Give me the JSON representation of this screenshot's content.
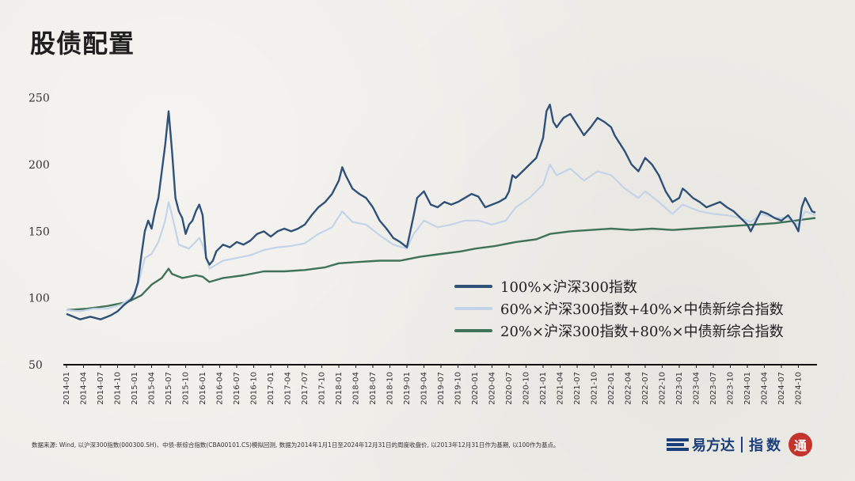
{
  "page": {
    "title": "股债配置"
  },
  "chart_data": {
    "type": "line",
    "title": "股债配置",
    "xlabel": "",
    "ylabel": "",
    "ylim": [
      50,
      270
    ],
    "yticks": [
      50,
      100,
      150,
      200,
      250
    ],
    "xticks": [
      "2014-01",
      "2014-04",
      "2014-07",
      "2014-10",
      "2015-01",
      "2015-04",
      "2015-07",
      "2015-10",
      "2016-01",
      "2016-04",
      "2016-07",
      "2016-10",
      "2017-01",
      "2017-04",
      "2017-07",
      "2017-10",
      "2018-01",
      "2018-04",
      "2018-07",
      "2018-10",
      "2019-01",
      "2019-04",
      "2019-07",
      "2019-10",
      "2020-01",
      "2020-04",
      "2020-07",
      "2020-10",
      "2021-01",
      "2021-04",
      "2021-07",
      "2021-10",
      "2022-01",
      "2022-04",
      "2022-07",
      "2022-10",
      "2023-01",
      "2023-04",
      "2023-07",
      "2023-10",
      "2024-01",
      "2024-04",
      "2024-07",
      "2024-10"
    ],
    "series": [
      {
        "name": "100%×沪深300指数",
        "color": "#2f5178",
        "points": [
          [
            2014.0,
            88
          ],
          [
            2014.1,
            86
          ],
          [
            2014.2,
            84
          ],
          [
            2014.35,
            86
          ],
          [
            2014.5,
            84
          ],
          [
            2014.65,
            87
          ],
          [
            2014.75,
            90
          ],
          [
            2014.85,
            95
          ],
          [
            2014.95,
            99
          ],
          [
            2015.0,
            103
          ],
          [
            2015.05,
            112
          ],
          [
            2015.1,
            132
          ],
          [
            2015.15,
            150
          ],
          [
            2015.2,
            158
          ],
          [
            2015.25,
            152
          ],
          [
            2015.3,
            165
          ],
          [
            2015.35,
            175
          ],
          [
            2015.4,
            195
          ],
          [
            2015.45,
            215
          ],
          [
            2015.5,
            240
          ],
          [
            2015.55,
            210
          ],
          [
            2015.6,
            175
          ],
          [
            2015.65,
            165
          ],
          [
            2015.7,
            160
          ],
          [
            2015.75,
            148
          ],
          [
            2015.8,
            155
          ],
          [
            2015.85,
            158
          ],
          [
            2015.9,
            165
          ],
          [
            2015.95,
            170
          ],
          [
            2016.0,
            162
          ],
          [
            2016.05,
            130
          ],
          [
            2016.1,
            125
          ],
          [
            2016.15,
            128
          ],
          [
            2016.2,
            135
          ],
          [
            2016.3,
            140
          ],
          [
            2016.4,
            138
          ],
          [
            2016.5,
            142
          ],
          [
            2016.6,
            140
          ],
          [
            2016.7,
            143
          ],
          [
            2016.8,
            148
          ],
          [
            2016.9,
            150
          ],
          [
            2017.0,
            146
          ],
          [
            2017.1,
            150
          ],
          [
            2017.2,
            152
          ],
          [
            2017.3,
            150
          ],
          [
            2017.4,
            152
          ],
          [
            2017.5,
            155
          ],
          [
            2017.6,
            162
          ],
          [
            2017.7,
            168
          ],
          [
            2017.8,
            172
          ],
          [
            2017.9,
            178
          ],
          [
            2018.0,
            188
          ],
          [
            2018.05,
            198
          ],
          [
            2018.1,
            192
          ],
          [
            2018.2,
            182
          ],
          [
            2018.3,
            178
          ],
          [
            2018.4,
            175
          ],
          [
            2018.5,
            168
          ],
          [
            2018.6,
            158
          ],
          [
            2018.7,
            152
          ],
          [
            2018.8,
            145
          ],
          [
            2018.9,
            142
          ],
          [
            2019.0,
            138
          ],
          [
            2019.05,
            150
          ],
          [
            2019.1,
            162
          ],
          [
            2019.15,
            175
          ],
          [
            2019.25,
            180
          ],
          [
            2019.35,
            170
          ],
          [
            2019.45,
            168
          ],
          [
            2019.55,
            172
          ],
          [
            2019.65,
            170
          ],
          [
            2019.75,
            172
          ],
          [
            2019.85,
            175
          ],
          [
            2019.95,
            178
          ],
          [
            2020.05,
            176
          ],
          [
            2020.15,
            168
          ],
          [
            2020.25,
            170
          ],
          [
            2020.35,
            172
          ],
          [
            2020.45,
            175
          ],
          [
            2020.5,
            180
          ],
          [
            2020.55,
            192
          ],
          [
            2020.6,
            190
          ],
          [
            2020.7,
            195
          ],
          [
            2020.8,
            200
          ],
          [
            2020.9,
            205
          ],
          [
            2021.0,
            220
          ],
          [
            2021.05,
            240
          ],
          [
            2021.1,
            245
          ],
          [
            2021.15,
            232
          ],
          [
            2021.2,
            228
          ],
          [
            2021.3,
            235
          ],
          [
            2021.4,
            238
          ],
          [
            2021.5,
            230
          ],
          [
            2021.6,
            222
          ],
          [
            2021.7,
            228
          ],
          [
            2021.8,
            235
          ],
          [
            2021.9,
            232
          ],
          [
            2022.0,
            228
          ],
          [
            2022.05,
            222
          ],
          [
            2022.1,
            218
          ],
          [
            2022.2,
            210
          ],
          [
            2022.3,
            200
          ],
          [
            2022.4,
            195
          ],
          [
            2022.5,
            205
          ],
          [
            2022.6,
            200
          ],
          [
            2022.7,
            192
          ],
          [
            2022.8,
            180
          ],
          [
            2022.9,
            172
          ],
          [
            2023.0,
            175
          ],
          [
            2023.05,
            182
          ],
          [
            2023.1,
            180
          ],
          [
            2023.2,
            175
          ],
          [
            2023.3,
            172
          ],
          [
            2023.4,
            168
          ],
          [
            2023.5,
            170
          ],
          [
            2023.6,
            172
          ],
          [
            2023.7,
            168
          ],
          [
            2023.8,
            165
          ],
          [
            2023.9,
            160
          ],
          [
            2024.0,
            155
          ],
          [
            2024.05,
            150
          ],
          [
            2024.1,
            155
          ],
          [
            2024.2,
            165
          ],
          [
            2024.3,
            163
          ],
          [
            2024.4,
            160
          ],
          [
            2024.5,
            158
          ],
          [
            2024.6,
            162
          ],
          [
            2024.7,
            155
          ],
          [
            2024.75,
            150
          ],
          [
            2024.8,
            168
          ],
          [
            2024.85,
            175
          ],
          [
            2024.9,
            170
          ],
          [
            2024.95,
            165
          ],
          [
            2025.0,
            164
          ]
        ]
      },
      {
        "name": "60%×沪深300指数+40%×中债新综合指数",
        "color": "#c3d4e9",
        "points": [
          [
            2014.0,
            91
          ],
          [
            2014.2,
            90
          ],
          [
            2014.4,
            92
          ],
          [
            2014.6,
            92
          ],
          [
            2014.8,
            95
          ],
          [
            2014.95,
            100
          ],
          [
            2015.05,
            110
          ],
          [
            2015.15,
            130
          ],
          [
            2015.25,
            133
          ],
          [
            2015.35,
            142
          ],
          [
            2015.45,
            158
          ],
          [
            2015.5,
            172
          ],
          [
            2015.55,
            162
          ],
          [
            2015.65,
            140
          ],
          [
            2015.8,
            137
          ],
          [
            2015.95,
            145
          ],
          [
            2016.0,
            140
          ],
          [
            2016.1,
            122
          ],
          [
            2016.3,
            128
          ],
          [
            2016.5,
            130
          ],
          [
            2016.7,
            132
          ],
          [
            2016.9,
            136
          ],
          [
            2017.1,
            138
          ],
          [
            2017.3,
            139
          ],
          [
            2017.5,
            141
          ],
          [
            2017.7,
            148
          ],
          [
            2017.9,
            153
          ],
          [
            2018.05,
            165
          ],
          [
            2018.2,
            157
          ],
          [
            2018.4,
            155
          ],
          [
            2018.6,
            147
          ],
          [
            2018.8,
            140
          ],
          [
            2019.0,
            137
          ],
          [
            2019.1,
            148
          ],
          [
            2019.25,
            158
          ],
          [
            2019.45,
            153
          ],
          [
            2019.65,
            155
          ],
          [
            2019.85,
            158
          ],
          [
            2020.05,
            158
          ],
          [
            2020.25,
            155
          ],
          [
            2020.45,
            158
          ],
          [
            2020.6,
            168
          ],
          [
            2020.8,
            175
          ],
          [
            2021.0,
            185
          ],
          [
            2021.1,
            200
          ],
          [
            2021.2,
            192
          ],
          [
            2021.4,
            197
          ],
          [
            2021.6,
            188
          ],
          [
            2021.8,
            195
          ],
          [
            2022.0,
            192
          ],
          [
            2022.2,
            182
          ],
          [
            2022.4,
            175
          ],
          [
            2022.5,
            180
          ],
          [
            2022.7,
            172
          ],
          [
            2022.9,
            163
          ],
          [
            2023.05,
            170
          ],
          [
            2023.3,
            165
          ],
          [
            2023.5,
            163
          ],
          [
            2023.7,
            162
          ],
          [
            2023.9,
            160
          ],
          [
            2024.05,
            157
          ],
          [
            2024.2,
            163
          ],
          [
            2024.4,
            160
          ],
          [
            2024.6,
            160
          ],
          [
            2024.75,
            155
          ],
          [
            2024.85,
            165
          ],
          [
            2025.0,
            162
          ]
        ]
      },
      {
        "name": "20%×沪深300指数+80%×中债新综合指数",
        "color": "#3f7358",
        "points": [
          [
            2014.0,
            91
          ],
          [
            2014.3,
            92
          ],
          [
            2014.6,
            94
          ],
          [
            2014.9,
            97
          ],
          [
            2015.1,
            102
          ],
          [
            2015.25,
            110
          ],
          [
            2015.4,
            115
          ],
          [
            2015.5,
            122
          ],
          [
            2015.55,
            118
          ],
          [
            2015.7,
            115
          ],
          [
            2015.9,
            117
          ],
          [
            2016.0,
            116
          ],
          [
            2016.1,
            112
          ],
          [
            2016.3,
            115
          ],
          [
            2016.6,
            117
          ],
          [
            2016.9,
            120
          ],
          [
            2017.2,
            120
          ],
          [
            2017.5,
            121
          ],
          [
            2017.8,
            123
          ],
          [
            2018.0,
            126
          ],
          [
            2018.3,
            127
          ],
          [
            2018.6,
            128
          ],
          [
            2018.9,
            128
          ],
          [
            2019.2,
            131
          ],
          [
            2019.5,
            133
          ],
          [
            2019.8,
            135
          ],
          [
            2020.0,
            137
          ],
          [
            2020.3,
            139
          ],
          [
            2020.6,
            142
          ],
          [
            2020.9,
            144
          ],
          [
            2021.1,
            148
          ],
          [
            2021.4,
            150
          ],
          [
            2021.7,
            151
          ],
          [
            2022.0,
            152
          ],
          [
            2022.3,
            151
          ],
          [
            2022.6,
            152
          ],
          [
            2022.9,
            151
          ],
          [
            2023.2,
            152
          ],
          [
            2023.5,
            153
          ],
          [
            2023.8,
            154
          ],
          [
            2024.1,
            155
          ],
          [
            2024.4,
            156
          ],
          [
            2024.7,
            158
          ],
          [
            2025.0,
            160
          ]
        ]
      }
    ],
    "legend_position": "center-right"
  },
  "footer": {
    "source": "数据来源: Wind, 以沪深300指数(000300.SH)、中债-新综合指数(CBA00101.CS)模拟回测, 数据为2014年1月1日至2024年12月31日的周度收盘价, 以2013年12月31日作为基期, 以100作为基点。",
    "brand": "易方达",
    "brand_sub": "指数",
    "seal": "通"
  }
}
